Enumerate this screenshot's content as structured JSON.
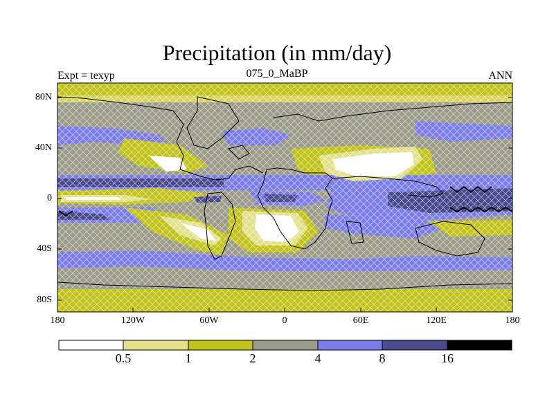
{
  "title": "Precipitation (in mm/day)",
  "left_label": "Expt = texyp",
  "center_label": "075_0_MaBP",
  "right_label": "ANN",
  "lat_ticks": [
    "80N",
    "40N",
    "0",
    "40S",
    "80S"
  ],
  "lon_ticks": [
    "180",
    "120W",
    "60W",
    "0",
    "60E",
    "120E",
    "180"
  ],
  "colorbar": {
    "colors": [
      "#ffffff",
      "#e2e08a",
      "#c2c21c",
      "#9b9b8a",
      "#7c7ce8",
      "#4a4a8e",
      "#000000"
    ],
    "labels": [
      "0.5",
      "1",
      "2",
      "4",
      "8",
      "16"
    ]
  }
}
